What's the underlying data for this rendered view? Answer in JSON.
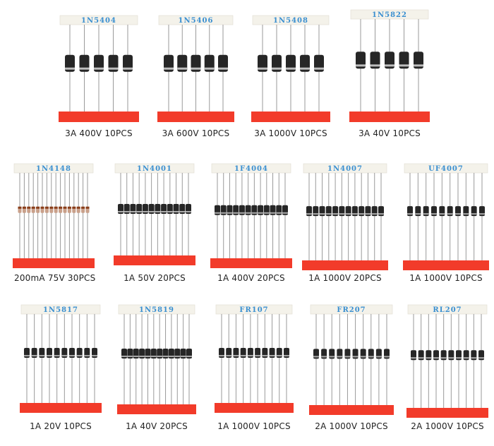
{
  "palette": {
    "tape": "#f4f2ea",
    "label_text": "#3a8fd0",
    "red_tape": "#f23b2a",
    "lead": "#9a9a9a",
    "body": "#262626",
    "band_brown": "#8a3e1a"
  },
  "kits": [
    {
      "part": "1N5404",
      "caption": "3A 400V 10PCS",
      "count": 5,
      "body": "big"
    },
    {
      "part": "1N5406",
      "caption": "3A 600V 10PCS",
      "count": 5,
      "body": "big"
    },
    {
      "part": "1N5408",
      "caption": "3A 1000V 10PCS",
      "count": 5,
      "body": "big"
    },
    {
      "part": "1N5822",
      "caption": "3A 40V 10PCS",
      "count": 5,
      "body": "big"
    },
    {
      "part": "1N4148",
      "caption": "200mA 75V 30PCS",
      "count": 16,
      "body": "glass"
    },
    {
      "part": "1N4001",
      "caption": "1A 50V 20PCS",
      "count": 12,
      "body": "small"
    },
    {
      "part": "1F4004",
      "caption": "1A 400V 20PCS",
      "count": 12,
      "body": "small"
    },
    {
      "part": "1N4007",
      "caption": "1A 1000V 20PCS",
      "count": 12,
      "body": "small"
    },
    {
      "part": "UF4007",
      "caption": "1A 1000V 10PCS",
      "count": 10,
      "body": "small"
    },
    {
      "part": "1N5817",
      "caption": "1A 20V 10PCS",
      "count": 10,
      "body": "small"
    },
    {
      "part": "1N5819",
      "caption": "1A 40V 20PCS",
      "count": 12,
      "body": "small"
    },
    {
      "part": "FR107",
      "caption": "1A 1000V 10PCS",
      "count": 10,
      "body": "small"
    },
    {
      "part": "FR207",
      "caption": "2A 1000V 10PCS",
      "count": 10,
      "body": "small"
    },
    {
      "part": "RL207",
      "caption": "2A 1000V 10PCS",
      "count": 10,
      "body": "small"
    }
  ]
}
